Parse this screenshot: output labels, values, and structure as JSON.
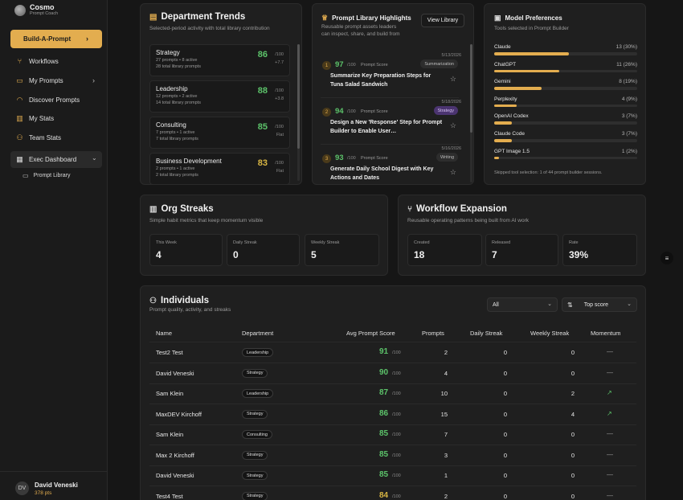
{
  "brand": {
    "name": "Cosmo",
    "sub": "Prompt Coach"
  },
  "sidebar": {
    "build_label": "Build-A-Prompt",
    "items": [
      {
        "label": "Workflows",
        "icon": "workflow-icon"
      },
      {
        "label": "My Prompts",
        "icon": "book-icon"
      },
      {
        "label": "Discover Prompts",
        "icon": "rss-icon"
      },
      {
        "label": "My Stats",
        "icon": "chart-icon"
      },
      {
        "label": "Team Stats",
        "icon": "users-icon"
      },
      {
        "label": "Exec Dashboard",
        "icon": "grid-icon"
      }
    ],
    "sub_item": "Prompt Library",
    "user": {
      "initials": "DV",
      "name": "David Veneski",
      "points": "378 pts"
    }
  },
  "dept_trends": {
    "title": "Department Trends",
    "subtitle": "Selected-period activity with total library contribution",
    "rows": [
      {
        "name": "Strategy",
        "l1": "27 prompts • 8 active",
        "l2": "28 total library prompts",
        "score": "86",
        "den": "/100",
        "trend": "+7.7",
        "color": "#5cc36a"
      },
      {
        "name": "Leadership",
        "l1": "12 prompts • 2 active",
        "l2": "14 total library prompts",
        "score": "88",
        "den": "/100",
        "trend": "+3.8",
        "color": "#5cc36a"
      },
      {
        "name": "Consulting",
        "l1": "7 prompts • 1 active",
        "l2": "7 total library prompts",
        "score": "85",
        "den": "/100",
        "trend": "Flat",
        "color": "#5cc36a"
      },
      {
        "name": "Business Development",
        "l1": "2 prompts • 1 active",
        "l2": "2 total library prompts",
        "score": "83",
        "den": "/100",
        "trend": "Flat",
        "color": "#d8b543"
      }
    ]
  },
  "prompt_library": {
    "title": "Prompt Library Highlights",
    "subtitle1": "Reusable prompt assets leaders",
    "subtitle2": "can inspect, share, and build from",
    "view_label": "View Library",
    "items": [
      {
        "date": "5/13/2026",
        "rank": "1",
        "score": "97",
        "den": "/100",
        "label": "Prompt Score",
        "tag": "Summarization",
        "title": "Summarize Key Preparation Steps for Tuna Salad Sandwich"
      },
      {
        "date": "5/18/2026",
        "rank": "2",
        "score": "94",
        "den": "/100",
        "label": "Prompt Score",
        "tag": "Strategy",
        "title": "Design a New 'Response' Step for Prompt Builder to Enable User…"
      },
      {
        "date": "5/16/2026",
        "rank": "3",
        "score": "93",
        "den": "/100",
        "label": "Prompt Score",
        "tag": "Writing",
        "title": "Generate Daily School Digest with Key Actions and Dates"
      }
    ]
  },
  "model_prefs": {
    "title": "Model Preferences",
    "subtitle": "Tools selected in Prompt Builder",
    "rows": [
      {
        "name": "Claude",
        "value": "13 (30%)",
        "pct": 0.3
      },
      {
        "name": "ChatGPT",
        "value": "11 (26%)",
        "pct": 0.26
      },
      {
        "name": "Gemini",
        "value": "8 (19%)",
        "pct": 0.19
      },
      {
        "name": "Perplexity",
        "value": "4 (9%)",
        "pct": 0.09
      },
      {
        "name": "OpenAI Codex",
        "value": "3 (7%)",
        "pct": 0.07
      },
      {
        "name": "Claude Code",
        "value": "3 (7%)",
        "pct": 0.07
      },
      {
        "name": "GPT Image 1.5",
        "value": "1 (2%)",
        "pct": 0.02
      }
    ],
    "footer": "Skipped tool selection: 1 of 44 prompt builder sessions."
  },
  "org_streaks": {
    "title": "Org Streaks",
    "subtitle": "Simple habit metrics that keep momentum visible",
    "stats": [
      {
        "label": "This Week",
        "value": "4"
      },
      {
        "label": "Daily Streak",
        "value": "0"
      },
      {
        "label": "Weekly Streak",
        "value": "5"
      }
    ]
  },
  "workflow": {
    "title": "Workflow Expansion",
    "subtitle": "Reusable operating patterns being built from AI work",
    "stats": [
      {
        "label": "Created",
        "value": "18"
      },
      {
        "label": "Released",
        "value": "7"
      },
      {
        "label": "Rate",
        "value": "39%"
      }
    ]
  },
  "individuals": {
    "title": "Individuals",
    "subtitle": "Prompt quality, activity, and streaks",
    "filter": "All",
    "sort": "Top score",
    "headers": [
      "Name",
      "Department",
      "Avg Prompt Score",
      "Prompts",
      "Daily Streak",
      "Weekly Streak",
      "Momentum"
    ],
    "rows": [
      {
        "name": "Test2 Test",
        "dept": "Leadership",
        "score": "91",
        "den": "/100",
        "prompts": "2",
        "daily": "0",
        "weekly": "0",
        "momentum": "—",
        "up": false,
        "yellow": false
      },
      {
        "name": "David Veneski",
        "dept": "Strategy",
        "score": "90",
        "den": "/100",
        "prompts": "4",
        "daily": "0",
        "weekly": "0",
        "momentum": "—",
        "up": false,
        "yellow": false
      },
      {
        "name": "Sam Klein",
        "dept": "Leadership",
        "score": "87",
        "den": "/100",
        "prompts": "10",
        "daily": "0",
        "weekly": "2",
        "momentum": "↗",
        "up": true,
        "yellow": false
      },
      {
        "name": "MaxDEV Kirchoff",
        "dept": "Strategy",
        "score": "86",
        "den": "/100",
        "prompts": "15",
        "daily": "0",
        "weekly": "4",
        "momentum": "↗",
        "up": true,
        "yellow": false
      },
      {
        "name": "Sam Klein",
        "dept": "Consulting",
        "score": "85",
        "den": "/100",
        "prompts": "7",
        "daily": "0",
        "weekly": "0",
        "momentum": "—",
        "up": false,
        "yellow": false
      },
      {
        "name": "Max 2 Kirchoff",
        "dept": "Strategy",
        "score": "85",
        "den": "/100",
        "prompts": "3",
        "daily": "0",
        "weekly": "0",
        "momentum": "—",
        "up": false,
        "yellow": false
      },
      {
        "name": "David Veneski",
        "dept": "Strategy",
        "score": "85",
        "den": "/100",
        "prompts": "1",
        "daily": "0",
        "weekly": "0",
        "momentum": "—",
        "up": false,
        "yellow": false
      },
      {
        "name": "Test4 Test",
        "dept": "Strategy",
        "score": "84",
        "den": "/100",
        "prompts": "2",
        "daily": "0",
        "weekly": "0",
        "momentum": "—",
        "up": false,
        "yellow": true
      }
    ]
  },
  "colors": {
    "accent": "#e3ad4f",
    "good": "#5cc36a",
    "warn": "#d8b543",
    "purple_tag": "#4b3470"
  }
}
